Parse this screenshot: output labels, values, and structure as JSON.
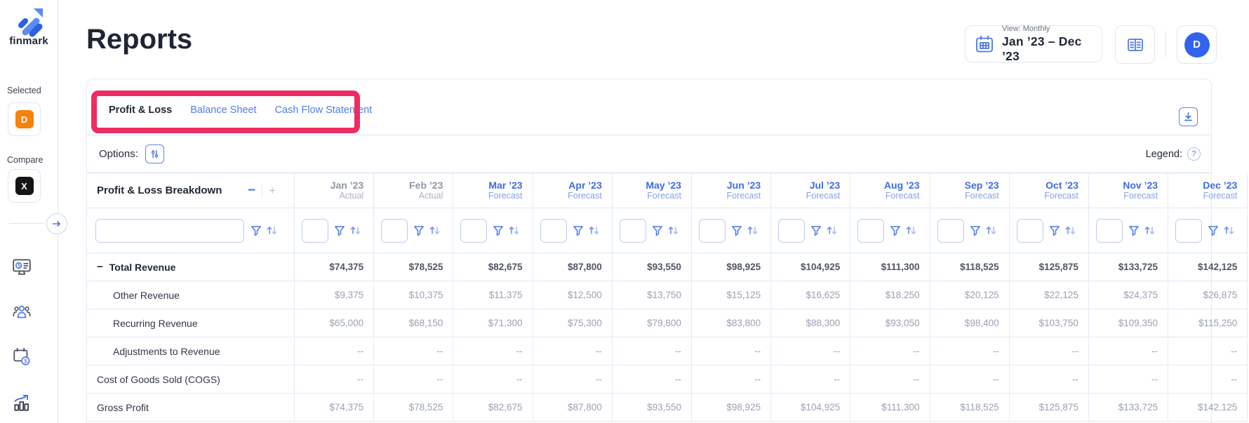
{
  "sidebar": {
    "logo_text": "finmark",
    "selected_label": "Selected",
    "selected_scenario": {
      "letter": "D",
      "color": "#f6820c"
    },
    "compare_label": "Compare",
    "compare_scenario": {
      "letter": "X",
      "color": "#141414"
    },
    "nav": [
      {
        "icon": "dashboard-icon"
      },
      {
        "icon": "team-icon"
      },
      {
        "icon": "billing-calendar-icon"
      },
      {
        "icon": "reports-chart-icon"
      }
    ]
  },
  "header": {
    "title": "Reports",
    "view_label": "View: Monthly",
    "date_range": "Jan ’23 – Dec ’23",
    "avatar_letter": "D"
  },
  "tabs": [
    {
      "label": "Profit & Loss",
      "active": true
    },
    {
      "label": "Balance Sheet",
      "active": false
    },
    {
      "label": "Cash Flow Statement",
      "active": false
    }
  ],
  "options": {
    "label": "Options:",
    "legend_label": "Legend:",
    "help_glyph": "?"
  },
  "table": {
    "first_column_header": "Profit & Loss Breakdown",
    "collapse_glyph": "−",
    "expand_glyph": "+",
    "columns": [
      {
        "month": "Jan ’23",
        "type": "Actual"
      },
      {
        "month": "Feb ’23",
        "type": "Actual"
      },
      {
        "month": "Mar ’23",
        "type": "Forecast"
      },
      {
        "month": "Apr ’23",
        "type": "Forecast"
      },
      {
        "month": "May ’23",
        "type": "Forecast"
      },
      {
        "month": "Jun ’23",
        "type": "Forecast"
      },
      {
        "month": "Jul ’23",
        "type": "Forecast"
      },
      {
        "month": "Aug ’23",
        "type": "Forecast"
      },
      {
        "month": "Sep ’23",
        "type": "Forecast"
      },
      {
        "month": "Oct ’23",
        "type": "Forecast"
      },
      {
        "month": "Nov ’23",
        "type": "Forecast"
      },
      {
        "month": "Dec ’23",
        "type": "Forecast",
        "clipped": true
      }
    ],
    "rows": [
      {
        "label": "Total Revenue",
        "level": 0,
        "collapsible": true,
        "bold": true,
        "values": [
          "$74,375",
          "$78,525",
          "$82,675",
          "$87,800",
          "$93,550",
          "$98,925",
          "$104,925",
          "$111,300",
          "$118,525",
          "$125,875",
          "$133,725",
          "$142,125"
        ]
      },
      {
        "label": "Other Revenue",
        "level": 1,
        "collapsible": false,
        "bold": false,
        "values": [
          "$9,375",
          "$10,375",
          "$11,375",
          "$12,500",
          "$13,750",
          "$15,125",
          "$16,625",
          "$18,250",
          "$20,125",
          "$22,125",
          "$24,375",
          "$26,875"
        ]
      },
      {
        "label": "Recurring Revenue",
        "level": 1,
        "collapsible": false,
        "bold": false,
        "values": [
          "$65,000",
          "$68,150",
          "$71,300",
          "$75,300",
          "$79,800",
          "$83,800",
          "$88,300",
          "$93,050",
          "$98,400",
          "$103,750",
          "$109,350",
          "$115,250"
        ]
      },
      {
        "label": "Adjustments to Revenue",
        "level": 1,
        "collapsible": false,
        "bold": false,
        "values": [
          "--",
          "--",
          "--",
          "--",
          "--",
          "--",
          "--",
          "--",
          "--",
          "--",
          "--",
          "--"
        ]
      },
      {
        "label": "Cost of Goods Sold (COGS)",
        "level": 0,
        "collapsible": false,
        "bold": false,
        "values": [
          "--",
          "--",
          "--",
          "--",
          "--",
          "--",
          "--",
          "--",
          "--",
          "--",
          "--",
          "--"
        ]
      },
      {
        "label": "Gross Profit",
        "level": 0,
        "collapsible": false,
        "bold": false,
        "values": [
          "$74,375",
          "$78,525",
          "$82,675",
          "$87,800",
          "$93,550",
          "$98,925",
          "$104,925",
          "$111,300",
          "$118,525",
          "$125,875",
          "$133,725",
          "$142,125"
        ]
      }
    ]
  },
  "annotation": {
    "color": "#ee2c63"
  },
  "colors": {
    "accent_blue": "#4b78e8",
    "forecast_blue": "#3d6be4",
    "actual_gray": "#8e95a8",
    "value_gray": "#9aa1b3",
    "border_light": "#e3eaf8",
    "annotation_pink": "#ee2c63",
    "selected_orange": "#f6820c",
    "avatar_blue": "#3163ef"
  }
}
